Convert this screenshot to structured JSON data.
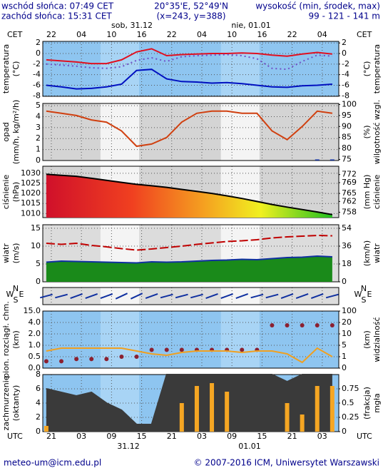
{
  "header": {
    "sunrise": "wschód słońca: 07:49 CET",
    "sunset": "zachód słońca: 15:31 CET",
    "coords": "20°35'E, 52°49'N",
    "grid": "(x=243, y=388)",
    "height_title": "wysokość (min, środek, max)",
    "height_values": "99 - 121 - 141 m"
  },
  "time_axis": {
    "xlim": [
      -3.7,
      55.3
    ],
    "cet_label": "CET",
    "utc_label": "UTC",
    "cet_ticks": [
      {
        "value": -2,
        "label": "22"
      },
      {
        "value": 4,
        "label": "04"
      },
      10,
      16,
      22,
      {
        "value": 28,
        "label": "04"
      },
      {
        "value": 34,
        "label": "10"
      },
      {
        "value": 40,
        "label": "16"
      },
      {
        "value": 46,
        "label": "22"
      },
      {
        "value": 52,
        "label": "04"
      }
    ],
    "utc_ticks": [
      {
        "value": -2,
        "label": "21"
      },
      {
        "value": 4,
        "label": "03"
      },
      {
        "value": 10,
        "label": "09"
      },
      {
        "value": 16,
        "label": "15"
      },
      {
        "value": 22,
        "label": "21"
      },
      {
        "value": 28,
        "label": "03"
      },
      {
        "value": 34,
        "label": "09"
      },
      {
        "value": 40,
        "label": "15"
      },
      {
        "value": 46,
        "label": "21"
      },
      {
        "value": 52,
        "label": "03"
      }
    ],
    "dates_top": [
      "sob, 31.12",
      "nie, 01.01"
    ],
    "dates_bottom": [
      "31.12",
      "01.01"
    ]
  },
  "chart_data": [
    {
      "type": "line",
      "ylabel": [
        "temperatura",
        "(°C)"
      ],
      "y2label": [
        "(°C)",
        "temperatura"
      ],
      "x": [
        -3,
        0,
        3,
        6,
        9,
        12,
        15,
        18,
        21,
        24,
        27,
        30,
        33,
        36,
        39,
        42,
        45,
        48,
        51,
        54
      ],
      "ylim": [
        -8.1,
        2.3
      ],
      "yticks": [
        2,
        0,
        -2,
        -4,
        -6,
        -8
      ],
      "y2lim": [
        -8.1,
        2.3
      ],
      "y2ticks": [
        2,
        0,
        -2,
        -4,
        -6,
        -8
      ],
      "series": [
        {
          "style": "line",
          "color": "#e01020",
          "values": [
            -1.2,
            -1.4,
            -1.6,
            -1.9,
            -1.9,
            -1.2,
            0.3,
            0.9,
            -0.4,
            -0.2,
            -0.1,
            0.0,
            0.0,
            0.1,
            0.0,
            -0.3,
            -0.5,
            -0.1,
            0.2,
            -0.1
          ]
        },
        {
          "style": "dotted",
          "color": "#7050c8",
          "values": [
            -2.0,
            -2.2,
            -2.4,
            -2.7,
            -2.8,
            -2.5,
            -1.3,
            -0.8,
            -1.5,
            -0.6,
            -0.4,
            -0.3,
            -0.2,
            -0.4,
            -1.0,
            -2.8,
            -3.0,
            -1.5,
            -0.3,
            -0.5
          ]
        },
        {
          "style": "line",
          "color": "#0010c0",
          "values": [
            -6.0,
            -6.3,
            -6.7,
            -6.6,
            -6.3,
            -5.8,
            -3.2,
            -3.0,
            -4.8,
            -5.3,
            -5.4,
            -5.6,
            -5.5,
            -5.7,
            -6.0,
            -6.3,
            -6.4,
            -6.1,
            -6.0,
            -5.8
          ]
        }
      ]
    },
    {
      "type": "line",
      "ylabel": [
        "opad",
        "(mm/h, kg/m²/h)"
      ],
      "y2label": [
        "(%)",
        "wilgotność wzgl."
      ],
      "x": [
        -3,
        0,
        3,
        6,
        9,
        12,
        15,
        18,
        21,
        24,
        27,
        30,
        33,
        36,
        39,
        42,
        45,
        48,
        51,
        54
      ],
      "ylim": [
        0,
        5.2
      ],
      "yticks": [
        5,
        4,
        3,
        2,
        1,
        0
      ],
      "y2lim": [
        74.5,
        100.5
      ],
      "y2ticks": [
        100,
        95,
        90,
        85,
        80,
        75
      ],
      "series": [
        {
          "style": "bars",
          "color": "#1030a0",
          "values": [
            0,
            0,
            0,
            0,
            0,
            0,
            0,
            0,
            0,
            0,
            0,
            0,
            0,
            0,
            0,
            0,
            0,
            0,
            0.1,
            0.1
          ]
        },
        {
          "style": "line",
          "axis": "y2",
          "color": "#d04010",
          "values": [
            97,
            96,
            95,
            93,
            92,
            88,
            81,
            82,
            85,
            92,
            96,
            97,
            97,
            96,
            96,
            88,
            84,
            90,
            97,
            96
          ]
        }
      ]
    },
    {
      "type": "line",
      "ylabel": [
        "ciśnienie",
        "(hPa)"
      ],
      "y2label": [
        "(mm Hg)",
        "ciśnienie"
      ],
      "x": [
        -3,
        0,
        3,
        6,
        9,
        12,
        15,
        18,
        21,
        24,
        27,
        30,
        33,
        36,
        39,
        42,
        45,
        48,
        51,
        54
      ],
      "ylim": [
        1008,
        1033.5
      ],
      "yticks": [
        1030,
        1025,
        1020,
        1015,
        1010
      ],
      "y2lim": [
        756,
        775.1
      ],
      "y2ticks": [
        772,
        769,
        765,
        762,
        758
      ],
      "series": [
        {
          "style": "gradient-area",
          "color": "#000000",
          "values": [
            1029.5,
            1029,
            1028.5,
            1027.5,
            1026.5,
            1025.5,
            1024.5,
            1023.8,
            1023,
            1022,
            1021,
            1020,
            1018.8,
            1017.5,
            1016,
            1014.5,
            1013.2,
            1012,
            1010.8,
            1009.5
          ]
        }
      ]
    },
    {
      "type": "line",
      "ylabel": [
        "wiatr",
        "(m/s)"
      ],
      "y2label": [
        "(km/h)",
        "wiatr"
      ],
      "x": [
        -3,
        0,
        3,
        6,
        9,
        12,
        15,
        18,
        21,
        24,
        27,
        30,
        33,
        36,
        39,
        42,
        45,
        48,
        51,
        54
      ],
      "ylim": [
        0,
        16
      ],
      "yticks": [
        15,
        10,
        5,
        0
      ],
      "y2lim": [
        0,
        57.6
      ],
      "y2ticks": [
        54,
        36,
        18,
        0
      ],
      "series": [
        {
          "style": "area",
          "color": "#1a8a1a",
          "stroke": "#1030a0",
          "values": [
            5.5,
            5.8,
            5.7,
            5.6,
            5.5,
            5.4,
            5.3,
            5.6,
            5.5,
            5.6,
            5.8,
            6.0,
            6.1,
            6.3,
            6.2,
            6.5,
            6.8,
            6.9,
            7.2,
            7.0
          ]
        },
        {
          "style": "dashed",
          "color": "#c00000",
          "values": [
            10.8,
            10.5,
            10.8,
            10.2,
            9.8,
            9.3,
            8.9,
            9.2,
            9.6,
            10,
            10.5,
            10.9,
            11.3,
            11.5,
            11.8,
            12.3,
            12.6,
            12.8,
            13,
            12.9
          ]
        }
      ]
    },
    {
      "type": "wind-direction",
      "compass": [
        "N",
        "W",
        "S",
        "E"
      ],
      "x": [
        -3,
        0,
        3,
        6,
        9,
        12,
        15,
        18,
        21,
        24,
        27,
        30,
        33,
        36,
        39,
        42,
        45,
        48,
        51,
        54
      ],
      "series": [
        {
          "style": "arrows",
          "color": "#1030a0",
          "values": [
            255,
            255,
            250,
            250,
            250,
            245,
            245,
            250,
            255,
            255,
            255,
            250,
            250,
            250,
            255,
            255,
            250,
            250,
            250,
            255
          ]
        }
      ]
    },
    {
      "type": "line",
      "ylabel": [
        "pion. rozciągł. chm.",
        "(km)"
      ],
      "y2label": [
        "(km)",
        "widzialność"
      ],
      "scale": "tick-spaced",
      "x": [
        -3,
        0,
        3,
        6,
        9,
        12,
        15,
        18,
        21,
        24,
        27,
        30,
        33,
        36,
        39,
        42,
        45,
        48,
        51,
        54
      ],
      "ylim": [
        0,
        15
      ],
      "yticks": [
        {
          "value": 15,
          "label": "15.0"
        },
        {
          "value": 4,
          "label": "4.0"
        },
        {
          "value": 2,
          "label": "2.0"
        },
        {
          "value": 1,
          "label": "1.0"
        },
        0.5,
        {
          "value": 0,
          "label": "0.0"
        }
      ],
      "y2lim": [
        0,
        100
      ],
      "y2ticks": [
        100,
        20,
        10,
        5,
        1,
        0
      ],
      "series": [
        {
          "style": "dots",
          "color": "#8b2030",
          "values": [
            0.3,
            0.3,
            0.4,
            0.4,
            0.4,
            0.5,
            0.5,
            0.8,
            0.8,
            0.8,
            0.8,
            0.8,
            0.8,
            0.8,
            0.8,
            3.5,
            3.5,
            3.5,
            3.5,
            3.5
          ]
        },
        {
          "style": "line",
          "axis": "y2",
          "color": "#f0a020",
          "values": [
            3,
            4,
            4,
            4,
            4,
            4,
            3,
            2,
            1.5,
            2.5,
            3,
            3,
            3,
            2.5,
            3,
            3,
            2,
            0.5,
            4,
            1
          ]
        }
      ]
    },
    {
      "type": "line",
      "ylabel": [
        "zachmurzenie",
        "(oktanty)"
      ],
      "y2label": [
        "(frakcja)",
        "mgła"
      ],
      "x": [
        -3,
        0,
        3,
        6,
        9,
        12,
        15,
        18,
        21,
        24,
        27,
        30,
        33,
        36,
        39,
        42,
        45,
        48,
        51,
        54
      ],
      "ylim": [
        0,
        8
      ],
      "yticks": [
        8,
        6,
        4,
        2,
        0
      ],
      "y2lim": [
        0,
        1
      ],
      "y2ticks": [
        0.75,
        0.5,
        0.25,
        0
      ],
      "series": [
        {
          "style": "area",
          "color": "#3a3a3a",
          "stroke": "#3a3a3a",
          "values": [
            6,
            5.5,
            5,
            5.5,
            4,
            3,
            1,
            1,
            8,
            8,
            8,
            8,
            8,
            8,
            8,
            8,
            7,
            8,
            8,
            8
          ]
        },
        {
          "style": "bars",
          "axis": "y2",
          "color": "#f5a623",
          "values": [
            0.1,
            0,
            0,
            0,
            0,
            0,
            0,
            0,
            0,
            0.5,
            0.8,
            0.85,
            0.7,
            0,
            0,
            0,
            0.5,
            0.3,
            0.8,
            0.8
          ]
        }
      ]
    }
  ],
  "footer": {
    "email": "meteo-um@icm.edu.pl",
    "copyright": "© 2007-2016 ICM, Uniwersytet Warszawski"
  }
}
